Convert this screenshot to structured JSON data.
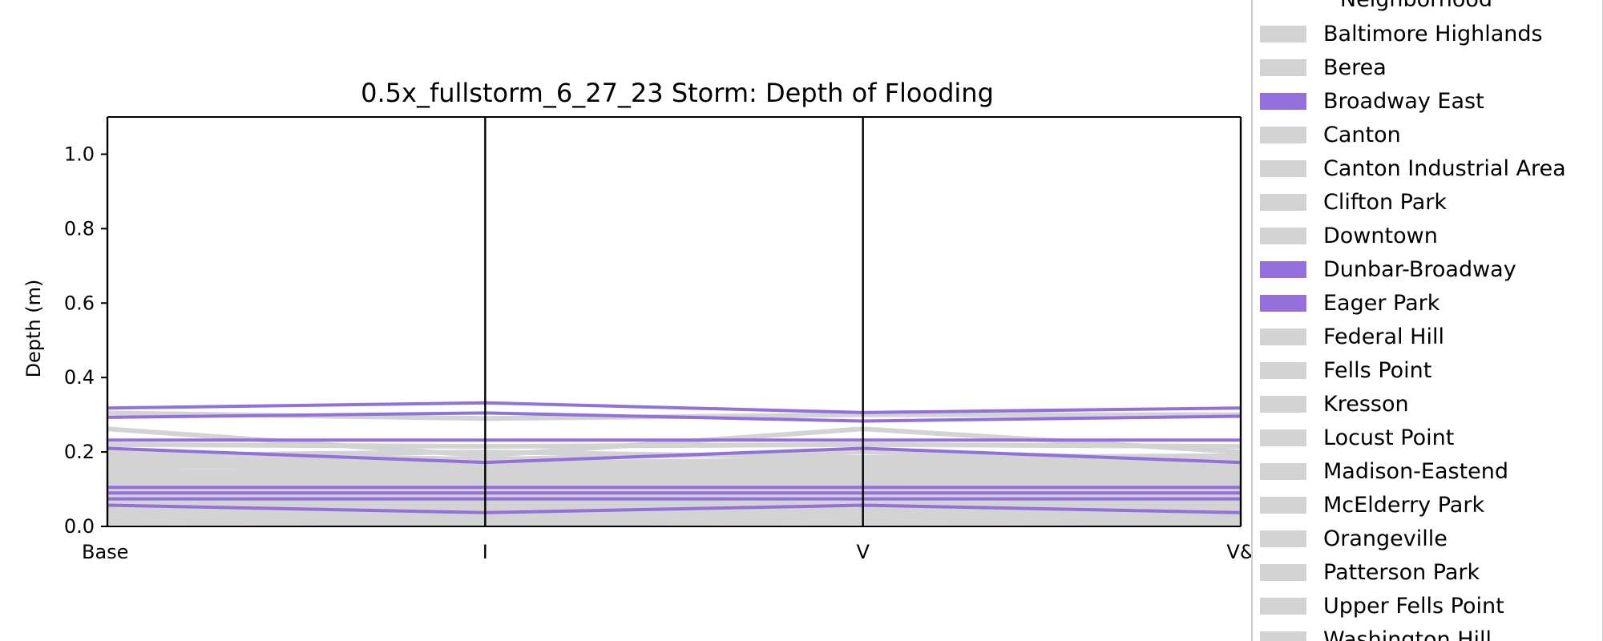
{
  "chart_data": {
    "type": "parallel-coordinates",
    "title": "0.5x_fullstorm_6_27_23 Storm: Depth of Flooding",
    "ylabel": "Depth (m)",
    "ylim": [
      0,
      1.1
    ],
    "yticks": [
      "0.0",
      "0.2",
      "0.4",
      "0.6",
      "0.8",
      "1.0"
    ],
    "categories": [
      "Base",
      "I",
      "V",
      "V&I"
    ],
    "category_labels_visible": [
      "Base",
      "I",
      "V",
      "V&"
    ],
    "grid": false,
    "colors": {
      "highlight": "#9370DB",
      "background": "#d3d3d3",
      "axis": "#000000"
    },
    "legend": {
      "title": "Neighborhood",
      "placement": "right",
      "entries": [
        {
          "name": "Baltimore Highlands",
          "highlighted": false
        },
        {
          "name": "Berea",
          "highlighted": false
        },
        {
          "name": "Broadway East",
          "highlighted": true
        },
        {
          "name": "Canton",
          "highlighted": false
        },
        {
          "name": "Canton Industrial Area",
          "highlighted": false
        },
        {
          "name": "Clifton Park",
          "highlighted": false
        },
        {
          "name": "Downtown",
          "highlighted": false
        },
        {
          "name": "Dunbar-Broadway",
          "highlighted": true
        },
        {
          "name": "Eager Park",
          "highlighted": true
        },
        {
          "name": "Federal Hill",
          "highlighted": false
        },
        {
          "name": "Fells Point",
          "highlighted": false
        },
        {
          "name": "Kresson",
          "highlighted": false
        },
        {
          "name": "Locust Point",
          "highlighted": false
        },
        {
          "name": "Madison-Eastend",
          "highlighted": false
        },
        {
          "name": "McElderry Park",
          "highlighted": false
        },
        {
          "name": "Orangeville",
          "highlighted": false
        },
        {
          "name": "Patterson Park",
          "highlighted": false
        },
        {
          "name": "Upper Fells Point",
          "highlighted": false
        },
        {
          "name": "Washington Hill",
          "highlighted": false
        }
      ]
    },
    "highlighted_series": [
      [
        0.318,
        0.332,
        0.306,
        0.318
      ],
      [
        0.293,
        0.305,
        0.283,
        0.296
      ],
      [
        0.232,
        0.232,
        0.232,
        0.232
      ],
      [
        0.21,
        0.172,
        0.21,
        0.172
      ],
      [
        0.105,
        0.105,
        0.105,
        0.105
      ],
      [
        0.09,
        0.09,
        0.09,
        0.09
      ],
      [
        0.074,
        0.074,
        0.074,
        0.074
      ],
      [
        0.057,
        0.037,
        0.057,
        0.037
      ]
    ],
    "background_series": [
      [
        0.305,
        0.29,
        0.3,
        0.3
      ],
      [
        0.262,
        0.19,
        0.262,
        0.2
      ],
      [
        0.22,
        0.215,
        0.22,
        0.215
      ],
      [
        0.2,
        0.18,
        0.2,
        0.18
      ],
      [
        0.19,
        0.2,
        0.185,
        0.19
      ],
      [
        0.185,
        0.17,
        0.18,
        0.175
      ],
      [
        0.18,
        0.16,
        0.175,
        0.165
      ],
      [
        0.172,
        0.175,
        0.16,
        0.165
      ],
      [
        0.165,
        0.15,
        0.165,
        0.15
      ],
      [
        0.16,
        0.165,
        0.15,
        0.16
      ],
      [
        0.15,
        0.14,
        0.155,
        0.14
      ],
      [
        0.145,
        0.15,
        0.14,
        0.15
      ],
      [
        0.14,
        0.13,
        0.14,
        0.13
      ],
      [
        0.132,
        0.14,
        0.128,
        0.135
      ],
      [
        0.125,
        0.12,
        0.125,
        0.118
      ],
      [
        0.118,
        0.125,
        0.115,
        0.12
      ],
      [
        0.112,
        0.11,
        0.112,
        0.108
      ],
      [
        0.1,
        0.098,
        0.1,
        0.098
      ],
      [
        0.095,
        0.1,
        0.092,
        0.095
      ],
      [
        0.085,
        0.082,
        0.085,
        0.082
      ],
      [
        0.08,
        0.085,
        0.078,
        0.08
      ],
      [
        0.068,
        0.065,
        0.068,
        0.065
      ],
      [
        0.062,
        0.06,
        0.062,
        0.06
      ],
      [
        0.05,
        0.052,
        0.048,
        0.05
      ],
      [
        0.045,
        0.042,
        0.045,
        0.042
      ],
      [
        0.04,
        0.038,
        0.04,
        0.038
      ],
      [
        0.03,
        0.032,
        0.03,
        0.028
      ],
      [
        0.025,
        0.022,
        0.025,
        0.022
      ],
      [
        0.015,
        0.018,
        0.015,
        0.016
      ],
      [
        0.01,
        0.008,
        0.01,
        0.008
      ]
    ]
  }
}
